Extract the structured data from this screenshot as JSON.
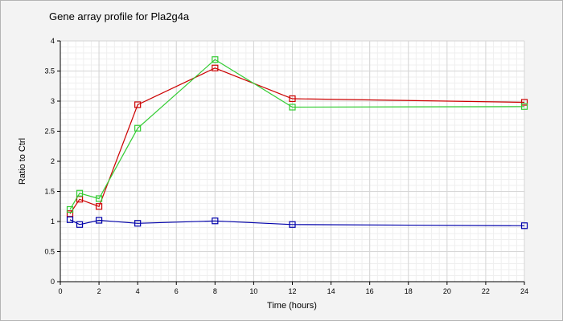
{
  "chart_data": {
    "type": "line",
    "title": "Gene array profile for Pla2g4a",
    "xlabel": "Time (hours)",
    "ylabel": "Ratio to Ctrl",
    "xlim": [
      0,
      24
    ],
    "ylim": [
      0,
      4
    ],
    "x_ticks": [
      0,
      2,
      4,
      6,
      8,
      10,
      12,
      14,
      16,
      18,
      20,
      22,
      24
    ],
    "y_ticks": [
      0,
      0.5,
      1,
      1.5,
      2,
      2.5,
      3,
      3.5,
      4
    ],
    "y_tick_labels": [
      "0",
      "0.5",
      "1",
      "1.5",
      "2",
      "2.5",
      "3",
      "3.5",
      "4"
    ],
    "grid": true,
    "minor_grid": true,
    "marker": "square",
    "series": [
      {
        "color": "#cc0000",
        "x": [
          0.5,
          1,
          2,
          4,
          8,
          12,
          24
        ],
        "y": [
          1.13,
          1.37,
          1.25,
          2.94,
          3.55,
          3.04,
          2.98
        ]
      },
      {
        "color": "#33cc33",
        "x": [
          0.5,
          1,
          2,
          4,
          8,
          12,
          24
        ],
        "y": [
          1.2,
          1.47,
          1.38,
          2.55,
          3.69,
          2.9,
          2.91
        ]
      },
      {
        "color": "#0000aa",
        "x": [
          0.5,
          1,
          2,
          4,
          8,
          12,
          24
        ],
        "y": [
          1.03,
          0.95,
          1.02,
          0.97,
          1.01,
          0.95,
          0.93
        ]
      }
    ]
  }
}
